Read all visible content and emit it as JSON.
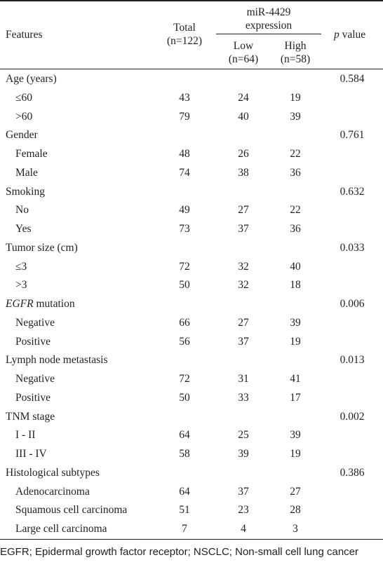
{
  "header": {
    "features": "Features",
    "total_line1": "Total",
    "total_line2": "(n=122)",
    "expr_line1": "miR-4429",
    "expr_line2": "expression",
    "low_line1": "Low",
    "low_line2": "(n=64)",
    "high_line1": "High",
    "high_line2": "(n=58)",
    "pvalue_italic": "p",
    "pvalue_rest": " value"
  },
  "rows": [
    {
      "label": "Age (years)",
      "p": "0.584"
    },
    {
      "label": "≤60",
      "total": "43",
      "low": "24",
      "high": "19"
    },
    {
      "label": ">60",
      "total": "79",
      "low": "40",
      "high": "39"
    },
    {
      "label": "Gender",
      "p": "0.761"
    },
    {
      "label": "Female",
      "total": "48",
      "low": "26",
      "high": "22"
    },
    {
      "label": "Male",
      "total": "74",
      "low": "38",
      "high": "36"
    },
    {
      "label": "Smoking",
      "p": "0.632"
    },
    {
      "label": "No",
      "total": "49",
      "low": "27",
      "high": "22"
    },
    {
      "label": "Yes",
      "total": "73",
      "low": "37",
      "high": "36"
    },
    {
      "label": "Tumor size (cm)",
      "p": "0.033"
    },
    {
      "label": "≤3",
      "total": "72",
      "low": "32",
      "high": "40"
    },
    {
      "label": ">3",
      "total": "50",
      "low": "32",
      "high": "18"
    },
    {
      "label_italic": "EGFR",
      "label": " mutation",
      "p": "0.006"
    },
    {
      "label": "Negative",
      "total": "66",
      "low": "27",
      "high": "39"
    },
    {
      "label": "Positive",
      "total": "56",
      "low": "37",
      "high": "19"
    },
    {
      "label": "Lymph node metastasis",
      "p": "0.013"
    },
    {
      "label": "Negative",
      "total": "72",
      "low": "31",
      "high": "41"
    },
    {
      "label": "Positive",
      "total": "50",
      "low": "33",
      "high": "17"
    },
    {
      "label": "TNM stage",
      "p": "0.002"
    },
    {
      "label": "I - II",
      "total": "64",
      "low": "25",
      "high": "39"
    },
    {
      "label": "III - IV",
      "total": "58",
      "low": "39",
      "high": "19"
    },
    {
      "label": "Histological subtypes",
      "p": "0.386"
    },
    {
      "label": "Adenocarcinoma",
      "total": "64",
      "low": "37",
      "high": "27"
    },
    {
      "label": "Squamous cell carcinoma",
      "total": "51",
      "low": "23",
      "high": "28"
    },
    {
      "label": "Large cell carcinoma",
      "total": "7",
      "low": "4",
      "high": "3"
    }
  ],
  "footnote": "EGFR; Epidermal growth factor receptor; NSCLC; Non-small cell lung cancer"
}
